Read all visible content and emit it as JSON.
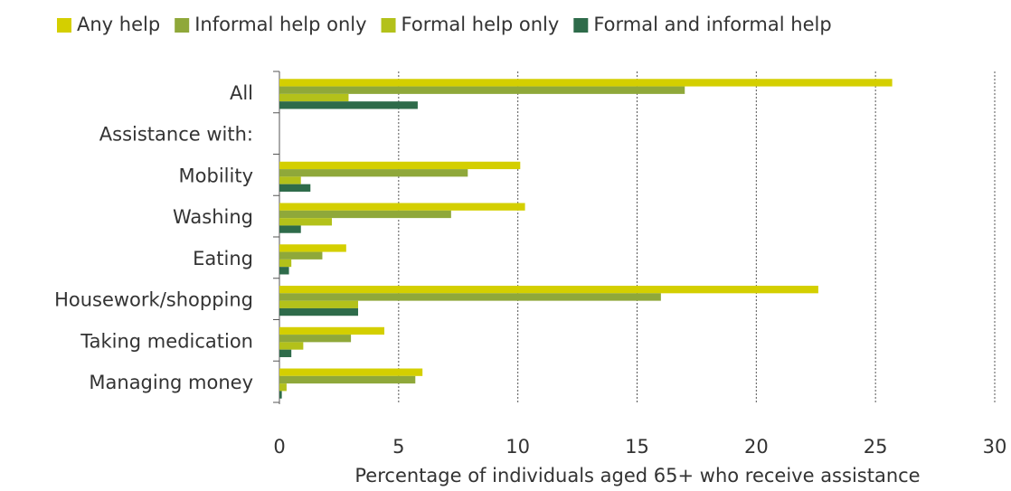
{
  "chart_data": {
    "type": "hbar",
    "x_label": "Percentage of individuals aged 65+ who receive assistance",
    "categories": [
      "All",
      "Assistance with:",
      "Mobility",
      "Washing",
      "Eating",
      "Housework/shopping",
      "Taking medication",
      "Managing money"
    ],
    "series": [
      {
        "name": "Any help",
        "color": "#d4cf00",
        "values": [
          25.7,
          null,
          10.1,
          10.3,
          2.8,
          22.6,
          4.4,
          6.0
        ]
      },
      {
        "name": "Informal help only",
        "color": "#8fa83a",
        "values": [
          17.0,
          null,
          7.9,
          7.2,
          1.8,
          16.0,
          3.0,
          5.7
        ]
      },
      {
        "name": "Formal help only",
        "color": "#b3c11a",
        "values": [
          2.9,
          null,
          0.9,
          2.2,
          0.5,
          3.3,
          1.0,
          0.3
        ]
      },
      {
        "name": "Formal and informal help",
        "color": "#2e6b4a",
        "values": [
          5.8,
          null,
          1.3,
          0.9,
          0.4,
          3.3,
          0.5,
          0.1
        ]
      }
    ],
    "xlim": [
      0,
      30
    ],
    "xticks": [
      0,
      5,
      10,
      15,
      20,
      25,
      30
    ],
    "grid": true,
    "legend": "top"
  }
}
